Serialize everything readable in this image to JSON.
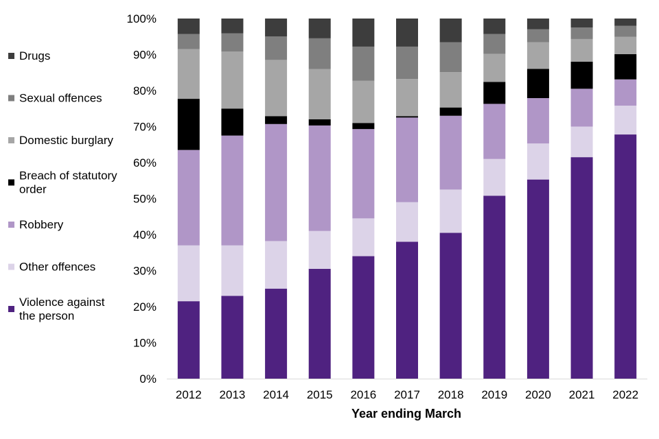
{
  "chart_data": {
    "type": "bar",
    "stacked": true,
    "percent": true,
    "title": "",
    "xlabel": "Year ending March",
    "ylabel": "",
    "ylim": [
      0,
      100
    ],
    "yticks": [
      "0%",
      "10%",
      "20%",
      "30%",
      "40%",
      "50%",
      "60%",
      "70%",
      "80%",
      "90%",
      "100%"
    ],
    "categories": [
      "2012",
      "2013",
      "2014",
      "2015",
      "2016",
      "2017",
      "2018",
      "2019",
      "2020",
      "2021",
      "2022"
    ],
    "legend_position": "left",
    "series": [
      {
        "name": "Violence against the person",
        "color": "#4f2280",
        "values": [
          21.5,
          23.0,
          25.0,
          30.5,
          34.0,
          38.0,
          40.5,
          50.8,
          55.3,
          61.5,
          67.8
        ]
      },
      {
        "name": "Other offences",
        "color": "#dcd3e8",
        "values": [
          15.5,
          14.0,
          13.2,
          10.5,
          10.5,
          11.0,
          12.0,
          10.2,
          10.0,
          8.5,
          8.0
        ]
      },
      {
        "name": "Robbery",
        "color": "#b096c7",
        "values": [
          26.5,
          30.5,
          32.5,
          29.3,
          24.8,
          23.5,
          20.5,
          15.3,
          12.6,
          10.5,
          7.3
        ]
      },
      {
        "name": "Breach of statutory order",
        "color": "#000000",
        "values": [
          14.2,
          7.5,
          2.2,
          1.7,
          1.7,
          0.4,
          2.3,
          6.1,
          8.1,
          7.5,
          7.0
        ]
      },
      {
        "name": "Domestic burglary",
        "color": "#a6a6a6",
        "values": [
          13.8,
          15.8,
          15.6,
          14.0,
          11.7,
          10.3,
          9.8,
          7.8,
          7.4,
          6.3,
          4.8
        ]
      },
      {
        "name": "Sexual offences",
        "color": "#7f7f7f",
        "values": [
          4.2,
          5.1,
          6.5,
          8.5,
          9.5,
          9.0,
          8.3,
          5.5,
          3.6,
          3.2,
          3.1
        ]
      },
      {
        "name": "Drugs",
        "color": "#3d3d3d",
        "values": [
          4.3,
          4.1,
          5.0,
          5.5,
          7.8,
          7.8,
          6.6,
          4.3,
          3.0,
          2.5,
          2.0
        ]
      }
    ],
    "legend_order": [
      "Drugs",
      "Sexual offences",
      "Domestic burglary",
      "Breach of statutory order",
      "Robbery",
      "Other offences",
      "Violence against the person"
    ],
    "legend_labels": {
      "Drugs": [
        "Drugs"
      ],
      "Sexual offences": [
        "Sexual offences"
      ],
      "Domestic burglary": [
        "Domestic burglary"
      ],
      "Breach of statutory order": [
        "Breach of statutory",
        "order"
      ],
      "Robbery": [
        "Robbery"
      ],
      "Other offences": [
        "Other offences"
      ],
      "Violence against the person": [
        "Violence against",
        "the person"
      ]
    }
  }
}
